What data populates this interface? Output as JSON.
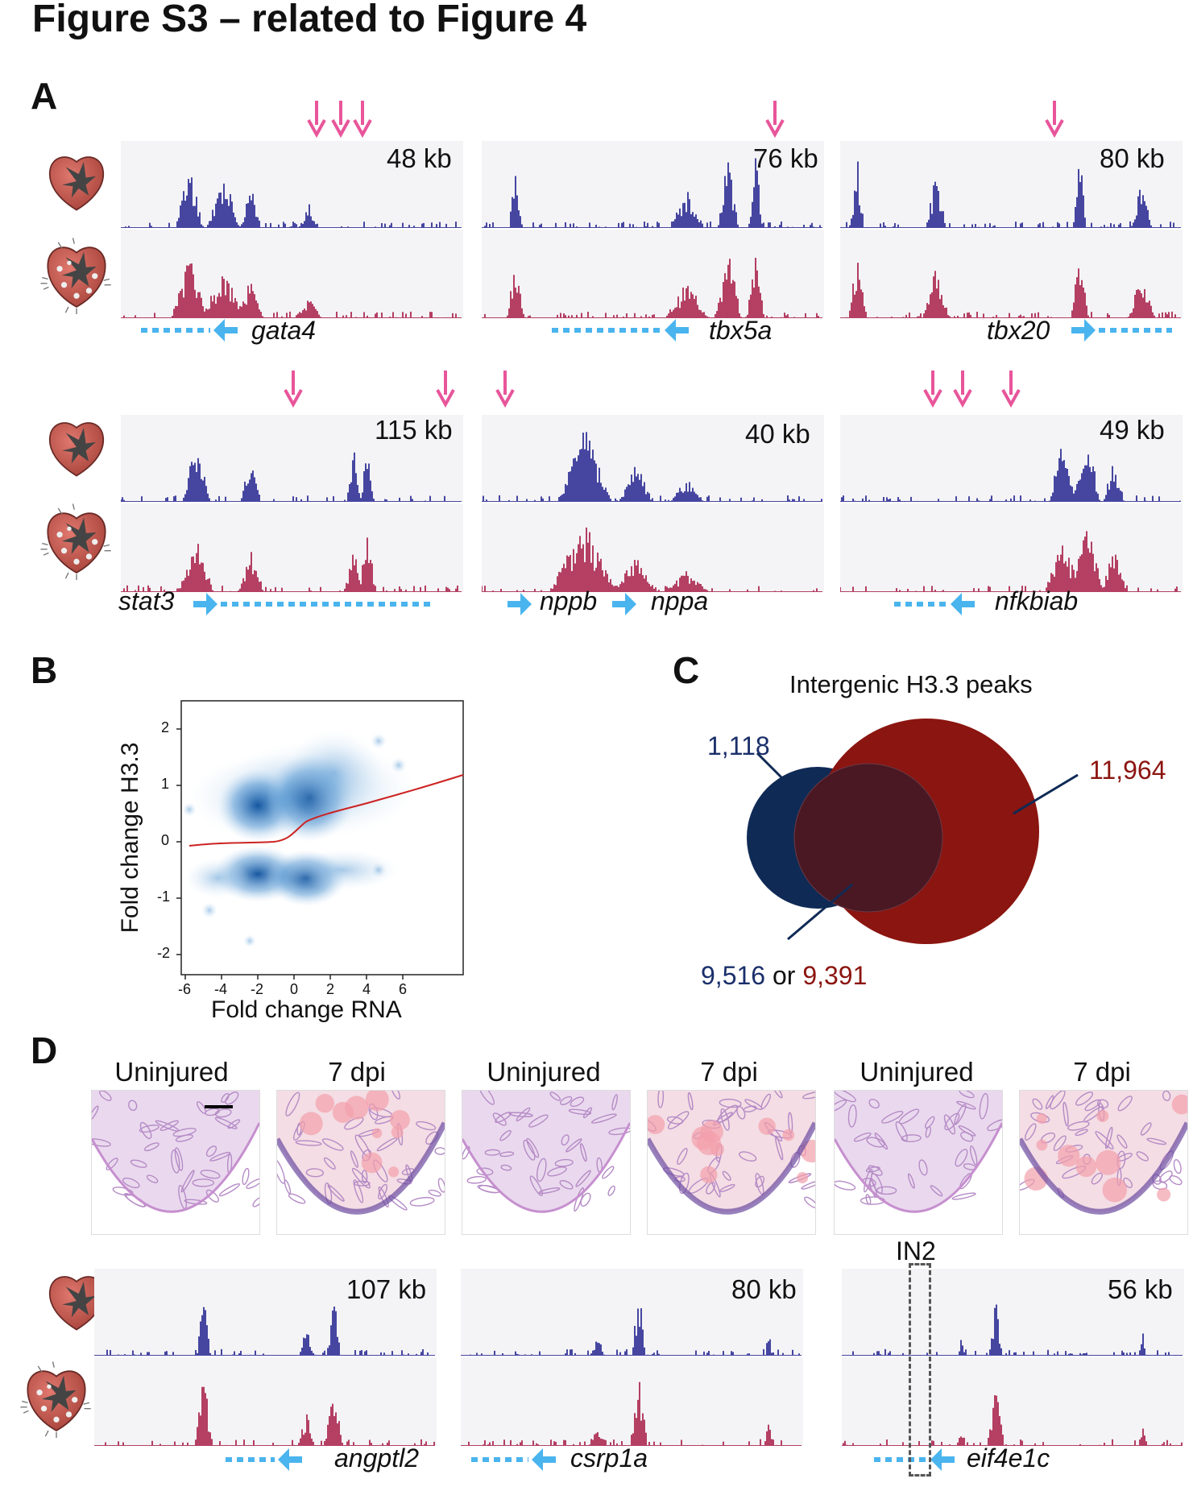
{
  "figure_title": "Figure S3 – related to Figure 4",
  "panels": {
    "A": "A",
    "B": "B",
    "C": "C",
    "D": "D"
  },
  "panel_a": {
    "loci": [
      {
        "size": "48 kb",
        "gene": "gata4"
      },
      {
        "size": "76 kb",
        "gene": "tbx5a"
      },
      {
        "size": "80 kb",
        "gene": "tbx20"
      },
      {
        "size": "115 kb",
        "gene": "stat3"
      },
      {
        "size": "40 kb",
        "gene": "nppb",
        "gene2": "nppa"
      },
      {
        "size": "49 kb",
        "gene": "nfkbiab"
      }
    ]
  },
  "panel_b": {
    "xlabel": "Fold change RNA",
    "ylabel": "Fold change H3.3",
    "xticks": [
      "-6",
      "-4",
      "-2",
      "0",
      "2",
      "4",
      "6"
    ],
    "yticks": [
      "2",
      "1",
      "0",
      "-1",
      "-2"
    ]
  },
  "panel_c": {
    "title": "Intergenic H3.3 peaks",
    "left_only": "1,118",
    "right_only": "11,964",
    "overlap_a": "9,516",
    "overlap_or": "or",
    "overlap_b": "9,391"
  },
  "panel_d": {
    "histology_labels": [
      "Uninjured",
      "7 dpi",
      "Uninjured",
      "7 dpi",
      "Uninjured",
      "7 dpi"
    ],
    "loci": [
      {
        "size": "107 kb",
        "gene": "angptl2"
      },
      {
        "size": "80 kb",
        "gene": "csrp1a"
      },
      {
        "size": "56 kb",
        "gene": "eif4e1c"
      }
    ],
    "region_label": "IN2"
  },
  "colors": {
    "uninjured_track": "#1a1a8c",
    "injured_track": "#a3123e",
    "arrow_pink": "#e8559a",
    "gene_arrow": "#4ab4ee",
    "venn_blue": "#0f2a55",
    "venn_red": "#8b1510"
  }
}
